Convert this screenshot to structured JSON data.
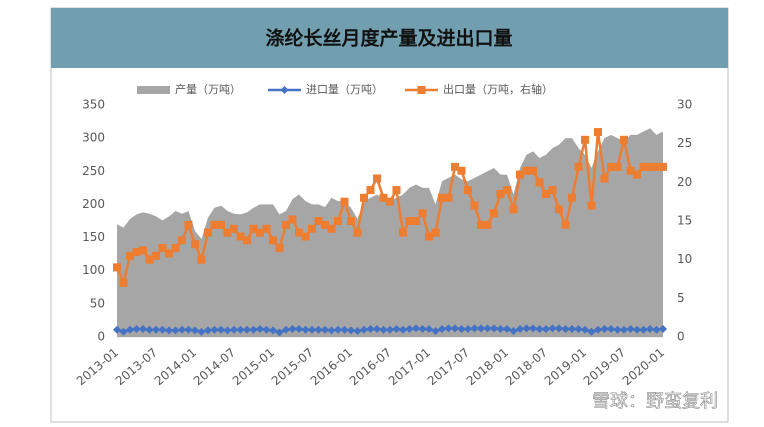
{
  "chart_data": {
    "type": "area_line_combo",
    "title": "涤纶长丝月度产量及进出口量",
    "watermark": "雪球：野蛮复利",
    "categories": [
      "2013-01",
      null,
      null,
      null,
      null,
      null,
      "2013-07",
      null,
      null,
      null,
      null,
      null,
      "2014-01",
      null,
      null,
      null,
      null,
      null,
      "2014-07",
      null,
      null,
      null,
      null,
      null,
      "2015-01",
      null,
      null,
      null,
      null,
      null,
      "2015-07",
      null,
      null,
      null,
      null,
      null,
      "2016-01",
      null,
      null,
      null,
      null,
      null,
      "2016-07",
      null,
      null,
      null,
      null,
      null,
      "2017-01",
      null,
      null,
      null,
      null,
      null,
      "2017-07",
      null,
      null,
      null,
      null,
      null,
      "2018-01",
      null,
      null,
      null,
      null,
      null,
      "2018-07",
      null,
      null,
      null,
      null,
      null,
      "2019-01",
      null,
      null,
      null,
      null,
      null,
      "2019-07",
      null,
      null,
      null,
      null,
      null,
      "2020-01"
    ],
    "series": [
      {
        "name": "产量（万吨）",
        "kind": "area",
        "color": "#a6a6a6",
        "values": [
          170,
          165,
          178,
          185,
          188,
          186,
          182,
          176,
          182,
          190,
          186,
          190,
          160,
          148,
          180,
          195,
          198,
          190,
          186,
          185,
          188,
          195,
          200,
          200,
          200,
          185,
          190,
          208,
          215,
          205,
          200,
          200,
          196,
          210,
          205,
          205,
          195,
          178,
          205,
          210,
          215,
          208,
          205,
          210,
          215,
          225,
          230,
          225,
          225,
          200,
          235,
          240,
          245,
          238,
          235,
          240,
          245,
          250,
          255,
          245,
          245,
          215,
          255,
          275,
          280,
          270,
          275,
          285,
          290,
          300,
          300,
          285,
          275,
          255,
          280,
          300,
          305,
          300,
          295,
          305,
          305,
          310,
          315,
          305,
          310
        ]
      },
      {
        "name": "进口量（万吨）",
        "kind": "line",
        "marker": "diamond",
        "color": "#4472c4",
        "values": [
          11,
          8,
          11,
          12,
          12,
          11,
          11,
          11,
          10,
          10,
          11,
          11,
          10,
          8,
          10,
          11,
          11,
          10,
          11,
          11,
          11,
          11,
          12,
          11,
          10,
          7,
          11,
          12,
          12,
          11,
          11,
          11,
          11,
          10,
          11,
          11,
          10,
          9,
          11,
          12,
          12,
          11,
          11,
          12,
          11,
          12,
          13,
          12,
          12,
          9,
          12,
          13,
          13,
          12,
          12,
          13,
          13,
          13,
          13,
          12,
          12,
          9,
          12,
          13,
          13,
          12,
          12,
          13,
          13,
          12,
          12,
          12,
          11,
          8,
          11,
          12,
          12,
          11,
          11,
          12,
          11,
          11,
          12,
          11,
          12
        ]
      },
      {
        "name": "出口量（万吨，右轴）",
        "kind": "line",
        "marker": "square",
        "axis": "y2",
        "color": "#ed7d31",
        "values": [
          9,
          7,
          10.5,
          11,
          11.2,
          10,
          10.5,
          11.5,
          10.8,
          11.5,
          12.5,
          14.5,
          12,
          10,
          13.5,
          14.5,
          14.5,
          13.5,
          14,
          13,
          12.5,
          14,
          13.5,
          14,
          12.5,
          11.5,
          14.5,
          15.2,
          13.5,
          13,
          14,
          15,
          14.5,
          14,
          15,
          17.5,
          15,
          13.5,
          18,
          19,
          20.5,
          18,
          17.5,
          19,
          13.5,
          15,
          15,
          16,
          13,
          13.5,
          18,
          18,
          22,
          21.5,
          19,
          17,
          14.5,
          14.5,
          16,
          18.5,
          19,
          16.5,
          21,
          21.5,
          21.5,
          20,
          18.5,
          19,
          16.5,
          14.5,
          18,
          22,
          25.5,
          17,
          26.5,
          20.5,
          22,
          22,
          25.5,
          21.5,
          21,
          22,
          22,
          22,
          22
        ]
      }
    ],
    "ylim": [
      0,
      350
    ],
    "yticks": [
      0,
      50,
      100,
      150,
      200,
      250,
      300,
      350
    ],
    "y2lim": [
      0,
      30
    ],
    "y2ticks": [
      0,
      5,
      10,
      15,
      20,
      25,
      30
    ]
  }
}
